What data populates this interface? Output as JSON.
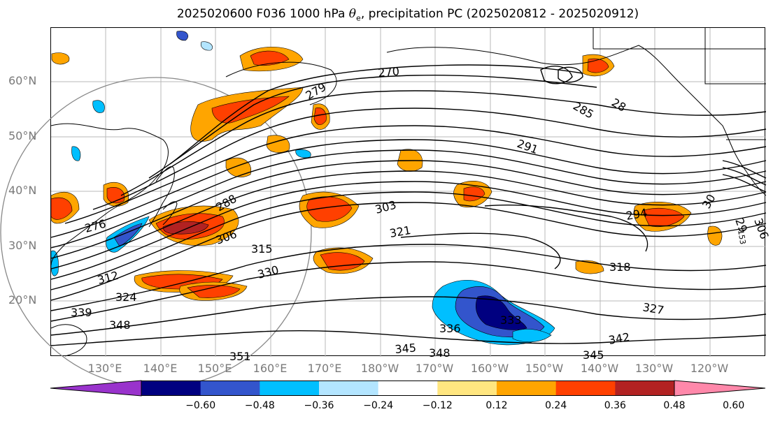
{
  "title": {
    "prefix": "2025020600 F036 1000 hPa ",
    "theta": "θ",
    "sub": "e",
    "suffix": ", precipitation PC (2025020812 - 2025020912)"
  },
  "lat_labels": [
    "60°N",
    "50°N",
    "40°N",
    "30°N",
    "20°N"
  ],
  "lon_labels": [
    "130°E",
    "140°E",
    "150°E",
    "160°E",
    "170°E",
    "180°W",
    "170°W",
    "160°W",
    "150°W",
    "140°W",
    "130°W",
    "120°W"
  ],
  "contour_labels": [
    "270",
    "279",
    "285",
    "28",
    "291",
    "288",
    "276",
    "303",
    "321",
    "306",
    "315",
    "294",
    "318",
    "312",
    "330",
    "324",
    "327",
    "339",
    "348",
    "333",
    "336",
    "342",
    "345",
    "348",
    "345",
    "351",
    "30",
    "29",
    "306",
    "153"
  ],
  "colorbar": {
    "colors": [
      "#9933cc",
      "#000080",
      "#3355cc",
      "#00bfff",
      "#b3e5ff",
      "#ffffff",
      "#ffe680",
      "#ffa500",
      "#ff4000",
      "#b22222",
      "#ff88aa"
    ],
    "ticks": [
      "−0.60",
      "−0.48",
      "−0.36",
      "−0.24",
      "−0.12",
      "0.12",
      "0.24",
      "0.36",
      "0.48",
      "0.60"
    ]
  }
}
